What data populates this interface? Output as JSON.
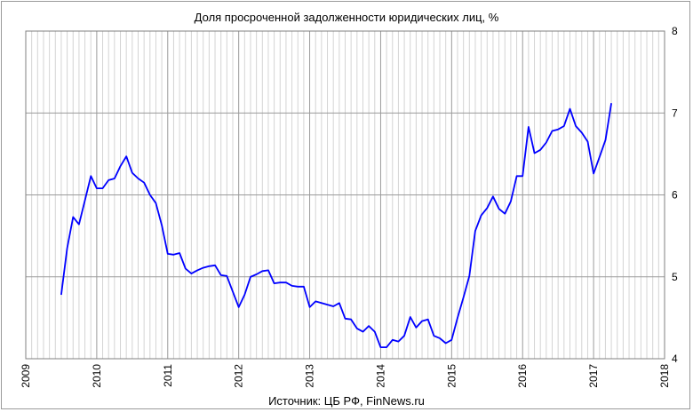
{
  "chart_data": {
    "type": "line",
    "title": "Доля просроченной задолженности юридических лиц, %",
    "source": "Источник: ЦБ РФ, FinNews.ru",
    "xlabel": "",
    "ylabel": "",
    "xlim": [
      2009,
      2018
    ],
    "ylim": [
      4,
      8
    ],
    "x_ticks": [
      "2009",
      "2010",
      "2011",
      "2012",
      "2013",
      "2014",
      "2015",
      "2016",
      "2017",
      "2018"
    ],
    "y_ticks": [
      "4",
      "5",
      "6",
      "7",
      "8"
    ],
    "grid": true,
    "legend": "none",
    "series": [
      {
        "color": "#0000ff",
        "x": [
          2009.5,
          2009.583,
          2009.667,
          2009.75,
          2009.833,
          2009.917,
          2010.0,
          2010.083,
          2010.167,
          2010.25,
          2010.333,
          2010.417,
          2010.5,
          2010.583,
          2010.667,
          2010.75,
          2010.833,
          2010.917,
          2011.0,
          2011.083,
          2011.167,
          2011.25,
          2011.333,
          2011.417,
          2011.5,
          2011.583,
          2011.667,
          2011.75,
          2011.833,
          2011.917,
          2012.0,
          2012.083,
          2012.167,
          2012.25,
          2012.333,
          2012.417,
          2012.5,
          2012.583,
          2012.667,
          2012.75,
          2012.833,
          2012.917,
          2013.0,
          2013.083,
          2013.167,
          2013.25,
          2013.333,
          2013.417,
          2013.5,
          2013.583,
          2013.667,
          2013.75,
          2013.833,
          2013.917,
          2014.0,
          2014.083,
          2014.167,
          2014.25,
          2014.333,
          2014.417,
          2014.5,
          2014.583,
          2014.667,
          2014.75,
          2014.833,
          2014.917,
          2015.0,
          2015.083,
          2015.167,
          2015.25,
          2015.333,
          2015.417,
          2015.5,
          2015.583,
          2015.667,
          2015.75,
          2015.833,
          2015.917,
          2016.0,
          2016.083,
          2016.167,
          2016.25,
          2016.333,
          2016.417,
          2016.5,
          2016.583,
          2016.667,
          2016.75,
          2016.833,
          2016.917,
          2017.0,
          2017.083,
          2017.167,
          2017.25
        ],
        "values": [
          4.78,
          5.35,
          5.73,
          5.64,
          5.93,
          6.23,
          6.08,
          6.08,
          6.18,
          6.2,
          6.35,
          6.47,
          6.27,
          6.2,
          6.15,
          6.0,
          5.9,
          5.63,
          5.28,
          5.27,
          5.29,
          5.1,
          5.04,
          5.08,
          5.11,
          5.13,
          5.14,
          5.02,
          5.01,
          4.82,
          4.63,
          4.78,
          5.0,
          5.03,
          5.07,
          5.08,
          4.92,
          4.93,
          4.93,
          4.89,
          4.88,
          4.88,
          4.63,
          4.7,
          4.68,
          4.66,
          4.64,
          4.68,
          4.49,
          4.48,
          4.37,
          4.33,
          4.4,
          4.33,
          4.14,
          4.14,
          4.23,
          4.21,
          4.28,
          4.51,
          4.38,
          4.46,
          4.48,
          4.28,
          4.25,
          4.19,
          4.23,
          4.5,
          4.75,
          5.01,
          5.56,
          5.75,
          5.84,
          5.98,
          5.83,
          5.77,
          5.92,
          6.23,
          6.23,
          6.83,
          6.51,
          6.55,
          6.64,
          6.78,
          6.8,
          6.84,
          7.05,
          6.84,
          6.76,
          6.65,
          6.26,
          6.46,
          6.67,
          7.12
        ]
      }
    ]
  }
}
